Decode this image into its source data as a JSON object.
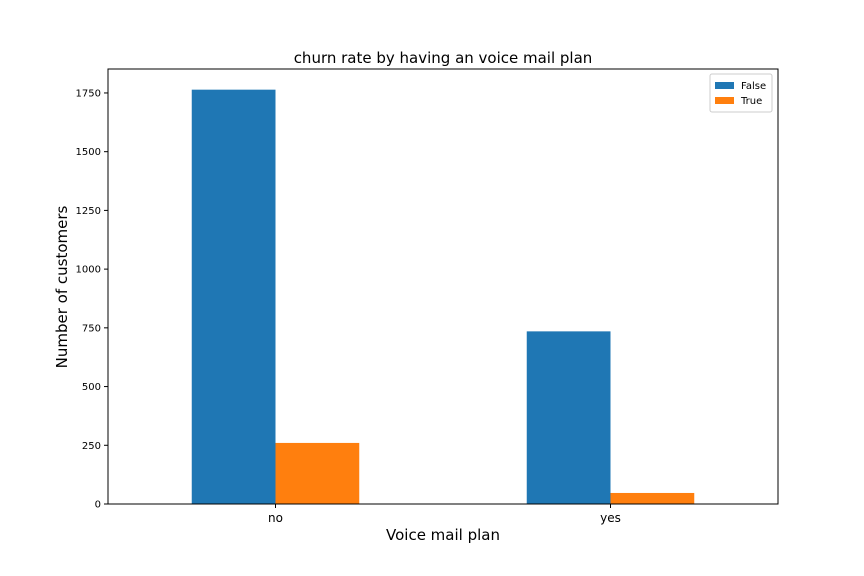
{
  "chart_data": {
    "type": "bar",
    "title": "churn rate by having an voice mail plan",
    "xlabel": "Voice mail plan",
    "ylabel": "Number of customers",
    "categories": [
      "no",
      "yes"
    ],
    "series": [
      {
        "name": "False",
        "values": [
          1764,
          735
        ],
        "color": "#1f77b4"
      },
      {
        "name": "True",
        "values": [
          260,
          47
        ],
        "color": "#ff7f0e"
      }
    ],
    "ylim": [
      0,
      1852
    ],
    "yticks": [
      0,
      250,
      500,
      750,
      1000,
      1250,
      1500,
      1750
    ],
    "grid": false,
    "legend_position": "top-right"
  }
}
